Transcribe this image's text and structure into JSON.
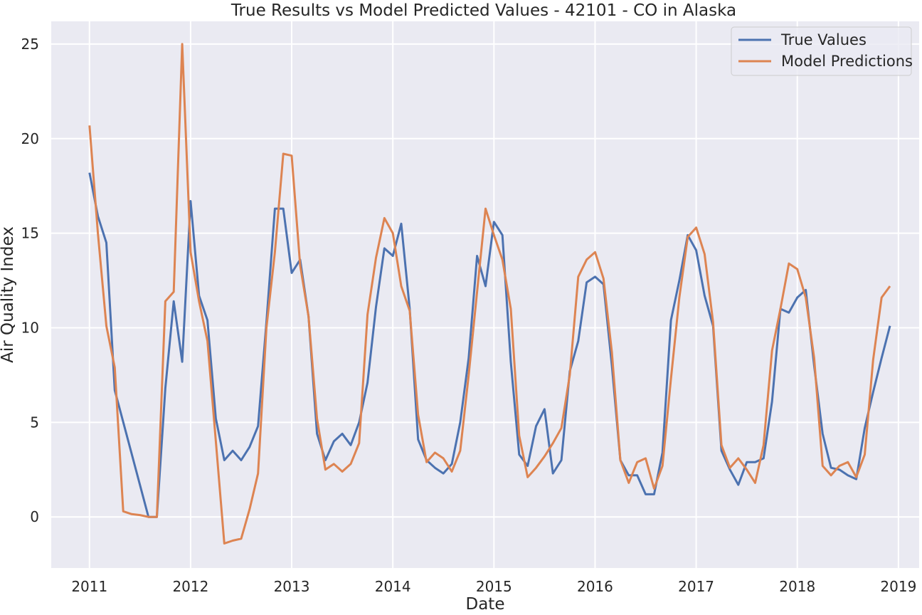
{
  "chart_data": {
    "type": "line",
    "title": "True Results vs Model Predicted Values - 42101 - CO in Alaska",
    "xlabel": "Date",
    "ylabel": "Air Quality Index",
    "x_ticks": [
      "2011",
      "2012",
      "2013",
      "2014",
      "2015",
      "2016",
      "2017",
      "2018",
      "2019"
    ],
    "y_ticks": [
      "0",
      "5",
      "10",
      "15",
      "20",
      "25"
    ],
    "xlim": [
      "2010-08-15",
      "2019-03-15"
    ],
    "ylim": [
      -2.7,
      26.2
    ],
    "grid": true,
    "legend_position": "top-right",
    "background": "#eaeaf2",
    "series": [
      {
        "name": "True Values",
        "color": "#4c72b0",
        "points": [
          [
            "2011-01",
            18.2
          ],
          [
            "2011-02",
            15.9
          ],
          [
            "2011-03",
            14.5
          ],
          [
            "2011-04",
            6.7
          ],
          [
            "2011-08",
            0.0
          ],
          [
            "2011-09",
            0.0
          ],
          [
            "2011-10",
            6.8
          ],
          [
            "2011-11",
            11.4
          ],
          [
            "2011-12",
            8.2
          ],
          [
            "2012-01",
            16.7
          ],
          [
            "2012-02",
            11.7
          ],
          [
            "2012-03",
            10.4
          ],
          [
            "2012-04",
            5.2
          ],
          [
            "2012-05",
            3.0
          ],
          [
            "2012-06",
            3.5
          ],
          [
            "2012-07",
            3.0
          ],
          [
            "2012-08",
            3.7
          ],
          [
            "2012-09",
            4.8
          ],
          [
            "2012-10",
            10.3
          ],
          [
            "2012-11",
            16.3
          ],
          [
            "2012-12",
            16.3
          ],
          [
            "2013-01",
            12.9
          ],
          [
            "2013-02",
            13.6
          ],
          [
            "2013-03",
            10.6
          ],
          [
            "2013-04",
            4.4
          ],
          [
            "2013-05",
            3.0
          ],
          [
            "2013-06",
            4.0
          ],
          [
            "2013-07",
            4.4
          ],
          [
            "2013-08",
            3.8
          ],
          [
            "2013-09",
            5.0
          ],
          [
            "2013-10",
            7.1
          ],
          [
            "2013-11",
            11.1
          ],
          [
            "2013-12",
            14.2
          ],
          [
            "2014-01",
            13.8
          ],
          [
            "2014-02",
            15.5
          ],
          [
            "2014-03",
            11.0
          ],
          [
            "2014-04",
            4.1
          ],
          [
            "2014-05",
            3.0
          ],
          [
            "2014-06",
            2.6
          ],
          [
            "2014-07",
            2.3
          ],
          [
            "2014-08",
            2.8
          ],
          [
            "2014-09",
            5.0
          ],
          [
            "2014-10",
            8.4
          ],
          [
            "2014-11",
            13.8
          ],
          [
            "2014-12",
            12.2
          ],
          [
            "2015-01",
            15.6
          ],
          [
            "2015-02",
            14.9
          ],
          [
            "2015-03",
            8.2
          ],
          [
            "2015-04",
            3.3
          ],
          [
            "2015-05",
            2.7
          ],
          [
            "2015-06",
            4.8
          ],
          [
            "2015-07",
            5.7
          ],
          [
            "2015-08",
            2.3
          ],
          [
            "2015-09",
            3.0
          ],
          [
            "2015-10",
            7.7
          ],
          [
            "2015-11",
            9.3
          ],
          [
            "2015-12",
            12.4
          ],
          [
            "2016-01",
            12.7
          ],
          [
            "2016-02",
            12.3
          ],
          [
            "2016-03",
            8.0
          ],
          [
            "2016-04",
            3.0
          ],
          [
            "2016-05",
            2.2
          ],
          [
            "2016-06",
            2.2
          ],
          [
            "2016-07",
            1.2
          ],
          [
            "2016-08",
            1.2
          ],
          [
            "2016-09",
            3.4
          ],
          [
            "2016-10",
            10.4
          ],
          [
            "2016-11",
            12.5
          ],
          [
            "2016-12",
            14.9
          ],
          [
            "2017-01",
            14.1
          ],
          [
            "2017-02",
            11.7
          ],
          [
            "2017-03",
            10.1
          ],
          [
            "2017-04",
            3.5
          ],
          [
            "2017-05",
            2.5
          ],
          [
            "2017-06",
            1.7
          ],
          [
            "2017-07",
            2.9
          ],
          [
            "2017-08",
            2.9
          ],
          [
            "2017-09",
            3.1
          ],
          [
            "2017-10",
            6.1
          ],
          [
            "2017-11",
            11.0
          ],
          [
            "2017-12",
            10.8
          ],
          [
            "2018-01",
            11.6
          ],
          [
            "2018-02",
            12.0
          ],
          [
            "2018-03",
            8.0
          ],
          [
            "2018-04",
            4.4
          ],
          [
            "2018-05",
            2.6
          ],
          [
            "2018-06",
            2.5
          ],
          [
            "2018-07",
            2.2
          ],
          [
            "2018-08",
            2.0
          ],
          [
            "2018-09",
            4.7
          ],
          [
            "2018-10",
            6.6
          ],
          [
            "2018-11",
            8.4
          ],
          [
            "2018-12",
            10.1
          ]
        ]
      },
      {
        "name": "Model Predictions",
        "color": "#dd8452",
        "points": [
          [
            "2011-01",
            20.7
          ],
          [
            "2011-02",
            15.0
          ],
          [
            "2011-03",
            10.1
          ],
          [
            "2011-04",
            7.9
          ],
          [
            "2011-05",
            0.3
          ],
          [
            "2011-06",
            0.15
          ],
          [
            "2011-07",
            0.1
          ],
          [
            "2011-08",
            0.0
          ],
          [
            "2011-09",
            0.0
          ],
          [
            "2011-10",
            11.4
          ],
          [
            "2011-11",
            11.9
          ],
          [
            "2011-12",
            25.0
          ],
          [
            "2012-01",
            14.0
          ],
          [
            "2012-02",
            11.4
          ],
          [
            "2012-03",
            9.3
          ],
          [
            "2012-04",
            4.0
          ],
          [
            "2012-05",
            -1.4
          ],
          [
            "2012-06",
            -1.25
          ],
          [
            "2012-07",
            -1.15
          ],
          [
            "2012-08",
            0.4
          ],
          [
            "2012-09",
            2.3
          ],
          [
            "2012-10",
            10.0
          ],
          [
            "2012-11",
            14.0
          ],
          [
            "2012-12",
            19.2
          ],
          [
            "2013-01",
            19.1
          ],
          [
            "2013-02",
            13.3
          ],
          [
            "2013-03",
            10.6
          ],
          [
            "2013-04",
            5.2
          ],
          [
            "2013-05",
            2.5
          ],
          [
            "2013-06",
            2.8
          ],
          [
            "2013-07",
            2.4
          ],
          [
            "2013-08",
            2.8
          ],
          [
            "2013-09",
            3.9
          ],
          [
            "2013-10",
            10.7
          ],
          [
            "2013-11",
            13.7
          ],
          [
            "2013-12",
            15.8
          ],
          [
            "2014-01",
            15.0
          ],
          [
            "2014-02",
            12.2
          ],
          [
            "2014-03",
            10.9
          ],
          [
            "2014-04",
            5.4
          ],
          [
            "2014-05",
            2.9
          ],
          [
            "2014-06",
            3.4
          ],
          [
            "2014-07",
            3.1
          ],
          [
            "2014-08",
            2.4
          ],
          [
            "2014-09",
            3.5
          ],
          [
            "2014-10",
            7.5
          ],
          [
            "2014-11",
            11.9
          ],
          [
            "2014-12",
            16.3
          ],
          [
            "2015-01",
            14.9
          ],
          [
            "2015-02",
            13.6
          ],
          [
            "2015-03",
            11.0
          ],
          [
            "2015-04",
            4.3
          ],
          [
            "2015-05",
            2.1
          ],
          [
            "2015-06",
            2.6
          ],
          [
            "2015-07",
            3.2
          ],
          [
            "2015-08",
            3.9
          ],
          [
            "2015-09",
            4.7
          ],
          [
            "2015-10",
            7.5
          ],
          [
            "2015-11",
            12.7
          ],
          [
            "2015-12",
            13.6
          ],
          [
            "2016-01",
            14.0
          ],
          [
            "2016-02",
            12.6
          ],
          [
            "2016-03",
            8.7
          ],
          [
            "2016-04",
            3.0
          ],
          [
            "2016-05",
            1.8
          ],
          [
            "2016-06",
            2.9
          ],
          [
            "2016-07",
            3.1
          ],
          [
            "2016-08",
            1.5
          ],
          [
            "2016-09",
            2.7
          ],
          [
            "2016-10",
            7.3
          ],
          [
            "2016-11",
            11.6
          ],
          [
            "2016-12",
            14.8
          ],
          [
            "2017-01",
            15.3
          ],
          [
            "2017-02",
            13.9
          ],
          [
            "2017-03",
            10.3
          ],
          [
            "2017-04",
            3.8
          ],
          [
            "2017-05",
            2.6
          ],
          [
            "2017-06",
            3.1
          ],
          [
            "2017-07",
            2.5
          ],
          [
            "2017-08",
            1.8
          ],
          [
            "2017-09",
            3.8
          ],
          [
            "2017-10",
            8.8
          ],
          [
            "2017-11",
            11.0
          ],
          [
            "2017-12",
            13.4
          ],
          [
            "2018-01",
            13.1
          ],
          [
            "2018-02",
            11.6
          ],
          [
            "2018-03",
            8.4
          ],
          [
            "2018-04",
            2.7
          ],
          [
            "2018-05",
            2.2
          ],
          [
            "2018-06",
            2.7
          ],
          [
            "2018-07",
            2.9
          ],
          [
            "2018-08",
            2.1
          ],
          [
            "2018-09",
            3.3
          ],
          [
            "2018-10",
            8.3
          ],
          [
            "2018-11",
            11.6
          ],
          [
            "2018-12",
            12.2
          ]
        ]
      }
    ]
  }
}
